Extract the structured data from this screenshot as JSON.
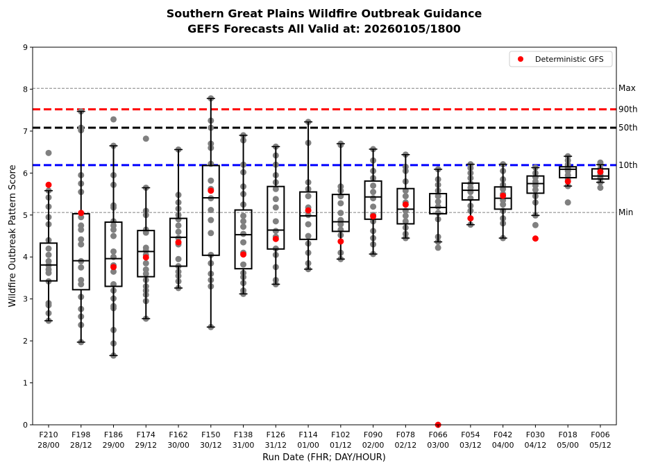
{
  "chart_data": {
    "type": "box",
    "title": "Southern Great Plains Wildfire Outbreak Guidance",
    "subtitle": "GEFS Forecasts All Valid at: 20260105/1800",
    "xlabel": "Run Date (FHR; DAY/HOUR)",
    "ylabel": "Wildfire Outbreak Pattern Score",
    "ylim": [
      0,
      9
    ],
    "yticks": [
      "0",
      "1",
      "2",
      "3",
      "4",
      "5",
      "6",
      "7",
      "8",
      "9"
    ],
    "legend": {
      "label": "Deterministic GFS",
      "placement": "top-right",
      "color": "#ff0000"
    },
    "reference_lines": [
      {
        "label": "Max",
        "value": 8.02,
        "color": "#808080",
        "style": "thin"
      },
      {
        "label": "90th",
        "value": 7.52,
        "color": "#ff0000",
        "style": "thick"
      },
      {
        "label": "50th",
        "value": 7.08,
        "color": "#000000",
        "style": "thick"
      },
      {
        "label": "10th",
        "value": 6.19,
        "color": "#0000ff",
        "style": "thick"
      },
      {
        "label": "Min",
        "value": 5.06,
        "color": "#808080",
        "style": "thin"
      }
    ],
    "categories": [
      {
        "fhr": "F210",
        "date": "28/00",
        "wlo": 2.48,
        "q1": 3.43,
        "med": 3.81,
        "q3": 4.33,
        "whi": 5.58,
        "det": 5.72,
        "members": [
          2.48,
          2.66,
          2.85,
          2.9,
          3.42,
          3.62,
          3.7,
          3.8,
          3.9,
          4.05,
          4.2,
          4.4,
          4.78,
          4.95,
          5.2,
          5.42,
          5.58,
          6.48
        ]
      },
      {
        "fhr": "F198",
        "date": "28/12",
        "wlo": 1.97,
        "q1": 3.22,
        "med": 3.91,
        "q3": 5.03,
        "whi": 7.47,
        "det": 5.05,
        "members": [
          1.97,
          2.38,
          2.58,
          2.76,
          3.05,
          3.35,
          3.45,
          3.75,
          3.9,
          4.3,
          4.42,
          4.65,
          4.75,
          4.95,
          5.55,
          5.75,
          5.95,
          7.02,
          7.08,
          7.47
        ]
      },
      {
        "fhr": "F186",
        "date": "29/00",
        "wlo": 1.65,
        "q1": 3.3,
        "med": 3.96,
        "q3": 4.83,
        "whi": 6.65,
        "det": 3.76,
        "members": [
          1.65,
          1.94,
          2.26,
          2.78,
          2.83,
          3.01,
          3.2,
          3.35,
          3.65,
          3.8,
          4.0,
          4.13,
          4.5,
          4.65,
          4.75,
          4.85,
          5.18,
          5.23,
          5.72,
          5.95,
          6.65,
          7.28
        ]
      },
      {
        "fhr": "F174",
        "date": "29/12",
        "wlo": 2.53,
        "q1": 3.53,
        "med": 4.13,
        "q3": 4.63,
        "whi": 5.65,
        "det": 3.99,
        "members": [
          2.53,
          2.95,
          3.1,
          3.2,
          3.3,
          3.45,
          3.6,
          3.7,
          3.85,
          4.05,
          4.15,
          4.22,
          4.58,
          4.65,
          5.0,
          5.1,
          5.65,
          6.82
        ]
      },
      {
        "fhr": "F162",
        "date": "30/00",
        "wlo": 3.26,
        "q1": 3.78,
        "med": 4.47,
        "q3": 4.92,
        "whi": 6.56,
        "det": 4.35,
        "members": [
          3.26,
          3.42,
          3.55,
          3.65,
          3.78,
          3.95,
          4.3,
          4.45,
          4.6,
          4.75,
          4.9,
          5.0,
          5.15,
          5.3,
          5.48,
          6.56
        ]
      },
      {
        "fhr": "F150",
        "date": "30/12",
        "wlo": 2.33,
        "q1": 4.04,
        "med": 5.41,
        "q3": 6.18,
        "whi": 7.78,
        "det": 5.58,
        "members": [
          2.33,
          3.3,
          3.45,
          3.6,
          3.85,
          4.05,
          4.57,
          4.88,
          5.12,
          5.4,
          5.62,
          5.82,
          6.22,
          6.6,
          6.7,
          7.08,
          7.25,
          7.78
        ]
      },
      {
        "fhr": "F138",
        "date": "31/00",
        "wlo": 3.12,
        "q1": 3.72,
        "med": 4.53,
        "q3": 5.12,
        "whi": 6.9,
        "det": 4.06,
        "members": [
          3.12,
          3.2,
          3.38,
          3.52,
          3.62,
          3.82,
          4.1,
          4.35,
          4.55,
          4.72,
          4.85,
          4.98,
          5.25,
          5.5,
          5.68,
          6.02,
          6.2,
          6.78,
          6.9
        ]
      },
      {
        "fhr": "F126",
        "date": "31/12",
        "wlo": 3.35,
        "q1": 4.19,
        "med": 4.64,
        "q3": 5.68,
        "whi": 6.63,
        "det": 4.43,
        "members": [
          3.35,
          3.45,
          3.76,
          4.05,
          4.2,
          4.48,
          4.62,
          4.85,
          5.18,
          5.38,
          5.62,
          5.78,
          5.95,
          6.2,
          6.42,
          6.63
        ]
      },
      {
        "fhr": "F114",
        "date": "01/00",
        "wlo": 3.71,
        "q1": 4.42,
        "med": 4.98,
        "q3": 5.55,
        "whi": 7.22,
        "det": 5.11,
        "members": [
          3.71,
          3.85,
          4.1,
          4.32,
          4.5,
          4.78,
          5.0,
          5.18,
          5.45,
          5.62,
          5.78,
          6.72,
          7.22
        ]
      },
      {
        "fhr": "F102",
        "date": "01/12",
        "wlo": 3.95,
        "q1": 4.61,
        "med": 4.84,
        "q3": 5.49,
        "whi": 6.7,
        "det": 4.37,
        "members": [
          3.95,
          4.1,
          4.52,
          4.65,
          4.78,
          4.88,
          5.05,
          5.28,
          5.45,
          5.58,
          5.68,
          6.67,
          6.7
        ]
      },
      {
        "fhr": "F090",
        "date": "02/00",
        "wlo": 4.07,
        "q1": 4.9,
        "med": 5.43,
        "q3": 5.81,
        "whi": 6.57,
        "det": 4.97,
        "members": [
          4.07,
          4.3,
          4.45,
          4.62,
          4.85,
          5.0,
          5.2,
          5.4,
          5.55,
          5.7,
          5.88,
          6.05,
          6.3,
          6.57
        ]
      },
      {
        "fhr": "F078",
        "date": "02/12",
        "wlo": 4.45,
        "q1": 4.79,
        "med": 5.14,
        "q3": 5.63,
        "whi": 6.44,
        "det": 5.25,
        "members": [
          4.45,
          4.55,
          4.7,
          4.85,
          4.98,
          5.1,
          5.3,
          5.45,
          5.58,
          5.8,
          6.05,
          6.15,
          6.44
        ]
      },
      {
        "fhr": "F066",
        "date": "03/00",
        "wlo": 4.36,
        "q1": 5.03,
        "med": 5.18,
        "q3": 5.51,
        "whi": 6.09,
        "det": 0.0,
        "members": [
          4.22,
          4.36,
          4.48,
          4.9,
          5.05,
          5.2,
          5.32,
          5.45,
          5.58,
          5.72,
          5.85,
          6.09
        ]
      },
      {
        "fhr": "F054",
        "date": "03/12",
        "wlo": 4.77,
        "q1": 5.36,
        "med": 5.59,
        "q3": 5.76,
        "whi": 6.21,
        "det": 4.92,
        "members": [
          4.77,
          5.1,
          5.22,
          5.4,
          5.55,
          5.65,
          5.75,
          5.88,
          6.0,
          6.12,
          6.21
        ]
      },
      {
        "fhr": "F042",
        "date": "04/00",
        "wlo": 4.45,
        "q1": 5.14,
        "med": 5.4,
        "q3": 5.67,
        "whi": 6.21,
        "det": 5.46,
        "members": [
          4.45,
          4.8,
          4.92,
          5.1,
          5.25,
          5.35,
          5.5,
          5.62,
          5.72,
          5.85,
          6.05,
          6.21
        ]
      },
      {
        "fhr": "F030",
        "date": "04/12",
        "wlo": 4.99,
        "q1": 5.52,
        "med": 5.75,
        "q3": 5.93,
        "whi": 6.13,
        "det": 4.44,
        "members": [
          4.76,
          4.99,
          5.3,
          5.45,
          5.6,
          5.7,
          5.8,
          5.9,
          6.0,
          6.13
        ]
      },
      {
        "fhr": "F018",
        "date": "05/00",
        "wlo": 5.69,
        "q1": 5.89,
        "med": 6.09,
        "q3": 6.15,
        "whi": 6.4,
        "det": 5.8,
        "members": [
          5.3,
          5.69,
          5.85,
          5.95,
          6.05,
          6.12,
          6.2,
          6.3,
          6.4
        ]
      },
      {
        "fhr": "F006",
        "date": "05/12",
        "wlo": 5.78,
        "q1": 5.86,
        "med": 5.93,
        "q3": 6.1,
        "whi": 6.2,
        "det": 6.03,
        "members": [
          5.65,
          5.78,
          5.88,
          5.95,
          6.02,
          6.1,
          6.2,
          6.25
        ]
      }
    ]
  }
}
